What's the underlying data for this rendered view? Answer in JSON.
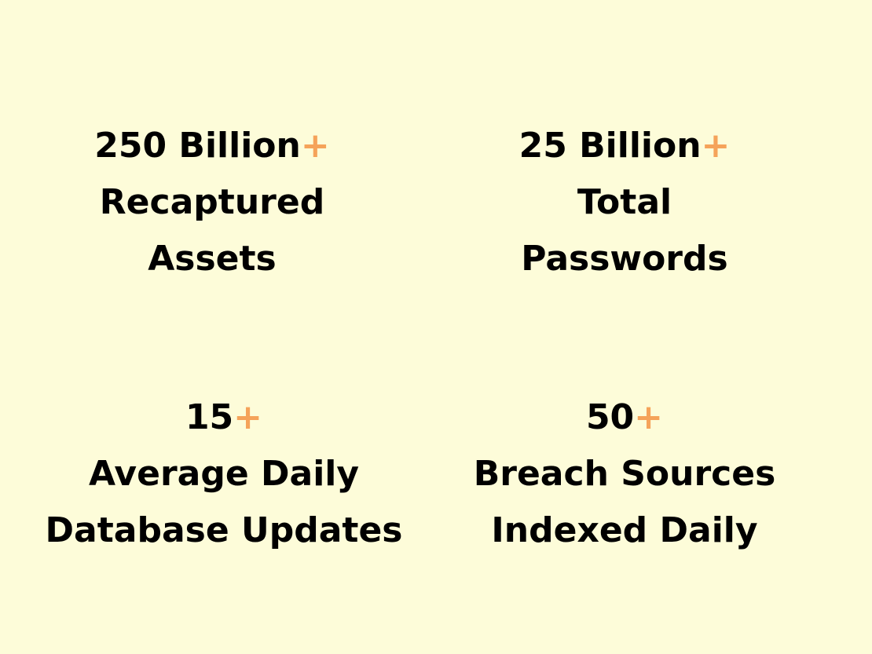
{
  "accent_color": "#f5a35a",
  "background_color": "#fdfcd9",
  "stats": [
    {
      "value": "250 Billion",
      "suffix": "+",
      "label_line1": "Recaptured",
      "label_line2": "Assets"
    },
    {
      "value": "25 Billion",
      "suffix": "+",
      "label_line1": "Total",
      "label_line2": "Passwords"
    },
    {
      "value": "15",
      "suffix": "+",
      "label_line1": "Average Daily",
      "label_line2": "Database Updates"
    },
    {
      "value": "50",
      "suffix": "+",
      "label_line1": "Breach Sources",
      "label_line2": "Indexed Daily"
    }
  ]
}
